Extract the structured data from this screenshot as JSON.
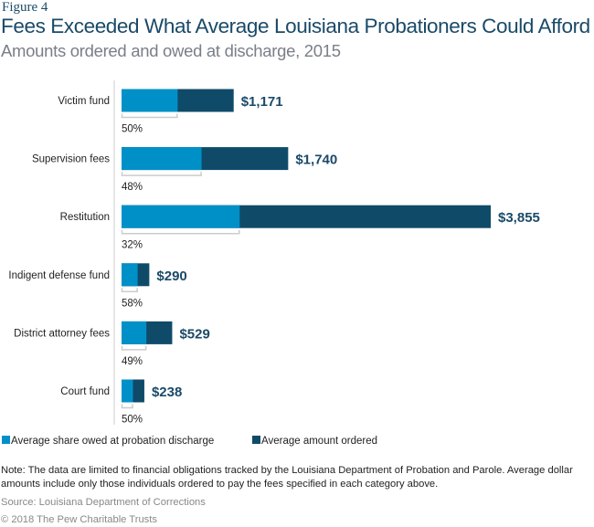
{
  "figure_label": "Figure 4",
  "chart_data": {
    "type": "bar",
    "orientation": "horizontal",
    "title": "Fees Exceeded What Average Louisiana Probationers Could Afford",
    "subtitle": "Amounts ordered and owed at discharge, 2015",
    "categories": [
      "Victim fund",
      "Supervision fees",
      "Restitution",
      "Indigent defense fund",
      "District attorney fees",
      "Court fund"
    ],
    "amount_ordered": [
      1171,
      1740,
      3855,
      290,
      529,
      238
    ],
    "amount_labels": [
      "$1,171",
      "$1,740",
      "$3,855",
      "$290",
      "$529",
      "$238"
    ],
    "share_owed_pct": [
      50,
      48,
      32,
      58,
      49,
      50
    ],
    "share_labels": [
      "50%",
      "48%",
      "32%",
      "58%",
      "49%",
      "50%"
    ],
    "legend": [
      {
        "name": "Average share owed at probation discharge",
        "color": "#0090c8"
      },
      {
        "name": "Average amount ordered",
        "color": "#0f4b69"
      }
    ],
    "legend_placement": "bottom",
    "grid": false,
    "xlim": [
      0,
      3855
    ]
  },
  "note": "Note: The data are limited to financial obligations tracked by the Louisiana Department of Probation and Parole. Average dollar amounts include only those individuals ordered to pay the fees specified in each category above.",
  "source": "Source: Louisiana Department of Corrections",
  "copyright": "© 2018 The Pew Charitable Trusts"
}
